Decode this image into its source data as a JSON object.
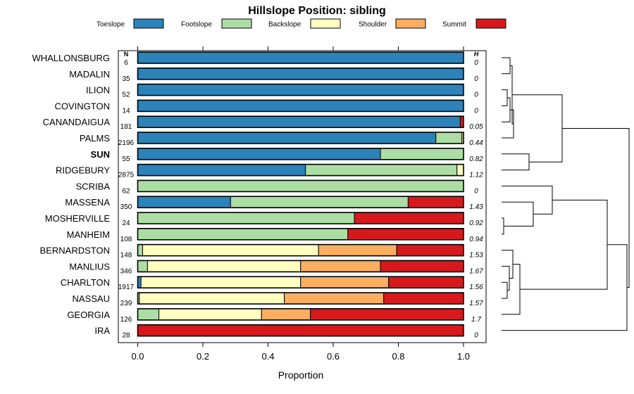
{
  "chart_data": {
    "type": "bar",
    "stacked": true,
    "orientation": "horizontal",
    "title": "Hillslope Position: sibling",
    "xlabel": "Proportion",
    "xlim": [
      0,
      1
    ],
    "xticks": [
      "0.0",
      "0.2",
      "0.4",
      "0.6",
      "0.8",
      "1.0"
    ],
    "n_header": "N",
    "h_header": "H",
    "legend_position": "top",
    "highlight": "SUN",
    "series": [
      {
        "name": "Toeslope",
        "color": "#2b83ba"
      },
      {
        "name": "Footslope",
        "color": "#abdda4"
      },
      {
        "name": "Backslope",
        "color": "#ffffbf"
      },
      {
        "name": "Shoulder",
        "color": "#fdae61"
      },
      {
        "name": "Summit",
        "color": "#d7191c"
      }
    ],
    "categories": [
      "WHALLONSBURG",
      "MADALIN",
      "ILION",
      "COVINGTON",
      "CANANDAIGUA",
      "PALMS",
      "SUN",
      "RIDGEBURY",
      "SCRIBA",
      "MASSENA",
      "MOSHERVILLE",
      "MANHEIM",
      "BERNARDSTON",
      "MANLIUS",
      "CHARLTON",
      "NASSAU",
      "GEORGIA",
      "IRA"
    ],
    "n": [
      "6",
      "35",
      "52",
      "14",
      "181",
      "2196",
      "55",
      "2875",
      "62",
      "350",
      "24",
      "108",
      "148",
      "346",
      "1917",
      "239",
      "126",
      "28"
    ],
    "h": [
      "0",
      "0",
      "0",
      "0",
      "0.05",
      "0.44",
      "0.82",
      "1.12",
      "0",
      "1.43",
      "0.92",
      "0.94",
      "1.53",
      "1.67",
      "1.56",
      "1.57",
      "1.7",
      "0"
    ],
    "values": [
      [
        1,
        0,
        0,
        0,
        0
      ],
      [
        1,
        0,
        0,
        0,
        0
      ],
      [
        1,
        0,
        0,
        0,
        0
      ],
      [
        1,
        0,
        0,
        0,
        0
      ],
      [
        0.99,
        0,
        0,
        0,
        0.01
      ],
      [
        0.915,
        0.08,
        0.005,
        0,
        0
      ],
      [
        0.745,
        0.255,
        0,
        0,
        0
      ],
      [
        0.515,
        0.465,
        0.02,
        0,
        0
      ],
      [
        0,
        1,
        0,
        0,
        0
      ],
      [
        0.285,
        0.545,
        0,
        0,
        0.17
      ],
      [
        0,
        0.665,
        0,
        0,
        0.335
      ],
      [
        0,
        0.645,
        0,
        0,
        0.355
      ],
      [
        0,
        0.015,
        0.54,
        0.24,
        0.205
      ],
      [
        0,
        0.03,
        0.47,
        0.245,
        0.255
      ],
      [
        0.01,
        0,
        0.49,
        0.27,
        0.23
      ],
      [
        0,
        0.005,
        0.445,
        0.305,
        0.245
      ],
      [
        0,
        0.065,
        0.315,
        0.15,
        0.47
      ],
      [
        0,
        0,
        0,
        0,
        1
      ]
    ],
    "dendrogram": {
      "type": "hierarchical clustering dendrogram",
      "leaf_order": [
        "WHALLONSBURG",
        "MADALIN",
        "ILION",
        "COVINGTON",
        "CANANDAIGUA",
        "PALMS",
        "SUN",
        "RIDGEBURY",
        "SCRIBA",
        "MASSENA",
        "MOSHERVILLE",
        "MANHEIM",
        "BERNARDSTON",
        "MANLIUS",
        "CHARLTON",
        "NASSAU",
        "GEORGIA",
        "IRA"
      ]
    }
  }
}
